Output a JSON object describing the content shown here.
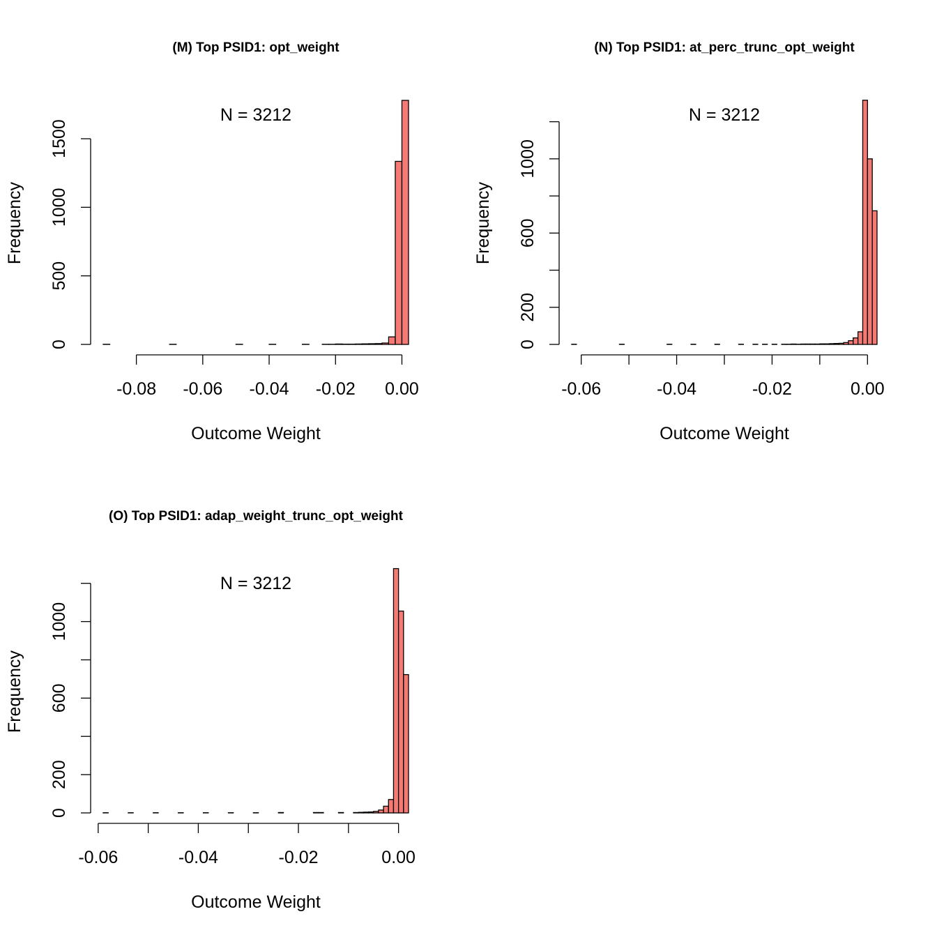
{
  "chart_data": [
    {
      "type": "histogram",
      "title": "(M) Top PSID1: opt_weight",
      "annotation": "N = 3212",
      "xlabel": "Outcome Weight",
      "ylabel": "Frequency",
      "color": "#f57a73",
      "bins": [
        -0.09,
        -0.088,
        -0.086,
        -0.084,
        -0.082,
        -0.08,
        -0.078,
        -0.076,
        -0.074,
        -0.072,
        -0.07,
        -0.068,
        -0.066,
        -0.064,
        -0.062,
        -0.06,
        -0.058,
        -0.056,
        -0.054,
        -0.052,
        -0.05,
        -0.048,
        -0.046,
        -0.044,
        -0.042,
        -0.04,
        -0.038,
        -0.036,
        -0.034,
        -0.032,
        -0.03,
        -0.028,
        -0.026,
        -0.024,
        -0.022,
        -0.02,
        -0.018,
        -0.016,
        -0.014,
        -0.012,
        -0.01,
        -0.008,
        -0.006,
        -0.004,
        -0.002,
        0,
        0.002
      ],
      "counts": [
        1,
        0,
        0,
        0,
        0,
        0,
        0,
        0,
        0,
        0,
        1,
        0,
        0,
        0,
        0,
        0,
        0,
        0,
        0,
        0,
        1,
        0,
        0,
        0,
        0,
        1,
        0,
        0,
        0,
        0,
        1,
        0,
        0,
        1,
        1,
        3,
        2,
        2,
        3,
        4,
        5,
        6,
        10,
        55,
        1335,
        1780
      ],
      "xlim": [
        -0.09,
        0.002
      ],
      "ylim": [
        0,
        1800
      ],
      "xticks": [
        -0.08,
        -0.06,
        -0.04,
        -0.02,
        {
          "value": 0,
          "label": "0.00"
        }
      ],
      "yticks": [
        0,
        500,
        1000,
        1500
      ]
    },
    {
      "type": "histogram",
      "title": "(N) Top PSID1: at_perc_trunc_opt_weight",
      "annotation": "N = 3212",
      "xlabel": "Outcome Weight",
      "ylabel": "Frequency",
      "color": "#f57a73",
      "bins": [
        -0.062,
        -0.061,
        -0.06,
        -0.059,
        -0.058,
        -0.057,
        -0.056,
        -0.055,
        -0.054,
        -0.053,
        -0.052,
        -0.051,
        -0.05,
        -0.049,
        -0.048,
        -0.047,
        -0.046,
        -0.045,
        -0.044,
        -0.043,
        -0.042,
        -0.041,
        -0.04,
        -0.039,
        -0.038,
        -0.037,
        -0.036,
        -0.035,
        -0.034,
        -0.033,
        -0.032,
        -0.031,
        -0.03,
        -0.029,
        -0.028,
        -0.027,
        -0.026,
        -0.025,
        -0.024,
        -0.023,
        -0.022,
        -0.021,
        -0.02,
        -0.019,
        -0.018,
        -0.017,
        -0.016,
        -0.015,
        -0.014,
        -0.013,
        -0.012,
        -0.011,
        -0.01,
        -0.009,
        -0.008,
        -0.007,
        -0.006,
        -0.005,
        -0.004,
        -0.003,
        -0.002,
        -0.001,
        0,
        0.001,
        0.002
      ],
      "counts": [
        1,
        0,
        0,
        0,
        0,
        0,
        0,
        0,
        0,
        0,
        1,
        0,
        0,
        0,
        0,
        0,
        0,
        0,
        0,
        0,
        1,
        0,
        0,
        0,
        0,
        1,
        0,
        0,
        0,
        0,
        1,
        0,
        0,
        0,
        0,
        1,
        0,
        0,
        1,
        0,
        1,
        0,
        1,
        0,
        1,
        1,
        2,
        1,
        2,
        2,
        2,
        2,
        3,
        3,
        4,
        5,
        6,
        10,
        20,
        35,
        68,
        1316,
        1000,
        720
      ],
      "xlim": [
        -0.062,
        0.002
      ],
      "ylim": [
        0,
        1330
      ],
      "xticks": [
        -0.06,
        -0.04,
        -0.02,
        {
          "value": 0,
          "label": "0.00"
        }
      ],
      "xticks_minor": [
        -0.05,
        -0.03,
        -0.01
      ],
      "yticks": [
        0,
        200,
        600,
        1000
      ],
      "yticks_minor": [
        400,
        800,
        1200
      ]
    },
    {
      "type": "histogram",
      "title": "(O) Top PSID1: adap_weight_trunc_opt_weight",
      "annotation": "N = 3212",
      "xlabel": "Outcome Weight",
      "ylabel": "Frequency",
      "color": "#f57a73",
      "bins": [
        -0.059,
        -0.058,
        -0.057,
        -0.056,
        -0.055,
        -0.054,
        -0.053,
        -0.052,
        -0.051,
        -0.05,
        -0.049,
        -0.048,
        -0.047,
        -0.046,
        -0.045,
        -0.044,
        -0.043,
        -0.042,
        -0.041,
        -0.04,
        -0.039,
        -0.038,
        -0.037,
        -0.036,
        -0.035,
        -0.034,
        -0.033,
        -0.032,
        -0.031,
        -0.03,
        -0.029,
        -0.028,
        -0.027,
        -0.026,
        -0.025,
        -0.024,
        -0.023,
        -0.022,
        -0.021,
        -0.02,
        -0.019,
        -0.018,
        -0.017,
        -0.016,
        -0.015,
        -0.014,
        -0.013,
        -0.012,
        -0.011,
        -0.01,
        -0.009,
        -0.008,
        -0.007,
        -0.006,
        -0.005,
        -0.004,
        -0.003,
        -0.002,
        -0.001,
        0,
        0.001,
        0.002
      ],
      "counts": [
        1,
        0,
        0,
        0,
        0,
        1,
        0,
        0,
        0,
        0,
        1,
        0,
        0,
        0,
        0,
        1,
        0,
        0,
        0,
        0,
        1,
        0,
        0,
        0,
        0,
        1,
        0,
        0,
        0,
        0,
        1,
        0,
        0,
        0,
        0,
        2,
        0,
        0,
        0,
        0,
        0,
        0,
        2,
        2,
        0,
        0,
        0,
        2,
        0,
        0,
        2,
        3,
        4,
        5,
        8,
        15,
        35,
        70,
        1277,
        1055,
        723
      ],
      "xlim": [
        -0.059,
        0.002
      ],
      "ylim": [
        0,
        1290
      ],
      "xticks": [
        -0.06,
        -0.04,
        -0.02,
        {
          "value": 0,
          "label": "0.00"
        }
      ],
      "xticks_minor": [
        -0.05,
        -0.03,
        -0.01
      ],
      "yticks": [
        0,
        200,
        600,
        1000
      ],
      "yticks_minor": [
        400,
        800,
        1200
      ]
    }
  ]
}
